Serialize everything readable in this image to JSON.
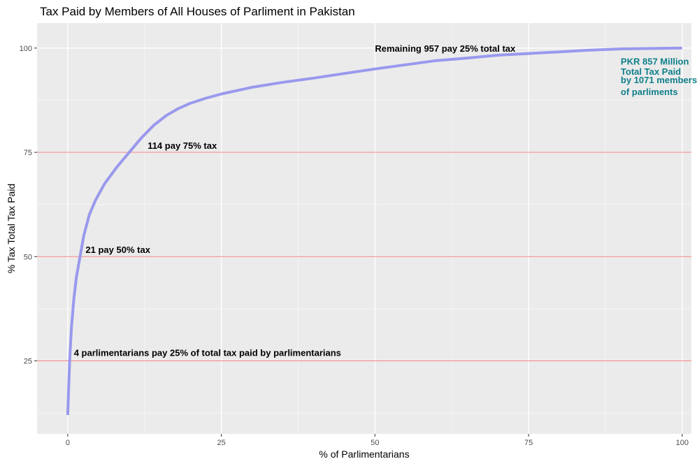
{
  "chart_data": {
    "type": "line",
    "title": "Tax Paid by Members of All Houses of Parliment in Pakistan",
    "xlabel": "% of Parlimentarians",
    "ylabel": "% Tax Total Tax Paid",
    "xlim": [
      -5,
      101.5
    ],
    "ylim": [
      7.5,
      106
    ],
    "x_ticks": [
      0,
      25,
      50,
      75,
      100
    ],
    "x_tick_labels": [
      "0",
      "25",
      "50",
      "75",
      "100"
    ],
    "y_ticks": [
      25,
      50,
      75,
      100
    ],
    "y_tick_labels": [
      "25",
      "50",
      "75",
      "100"
    ],
    "grid": true,
    "series": [
      {
        "color": "#9999ee",
        "x": [
          0,
          0.3,
          0.6,
          1,
          1.4,
          2,
          2.6,
          3.5,
          4.5,
          6,
          8,
          10,
          12,
          14,
          16,
          18,
          20,
          22.5,
          25,
          30,
          35,
          40,
          45,
          50,
          55,
          60,
          65,
          70,
          75,
          80,
          85,
          90,
          95,
          100
        ],
        "y": [
          12,
          25,
          33,
          40,
          45,
          50,
          55,
          60,
          63.5,
          67.5,
          71.5,
          75,
          78.5,
          81.5,
          83.8,
          85.5,
          86.8,
          88,
          89,
          90.6,
          91.8,
          92.8,
          93.9,
          95,
          96,
          97,
          97.6,
          98.3,
          98.7,
          99.1,
          99.5,
          99.8,
          99.9,
          100
        ]
      }
    ],
    "reference_lines": [
      {
        "y": 25,
        "color": "#f08080"
      },
      {
        "y": 50,
        "color": "#f08080"
      },
      {
        "y": 75,
        "color": "#f08080"
      }
    ],
    "annotations": [
      {
        "text": "4 parlimentarians pay 25% of total tax paid by parlimentarians",
        "x": 1,
        "y": 27,
        "anchor": "start",
        "color": "#000000"
      },
      {
        "text": "21 pay 50% tax",
        "x": 2.9,
        "y": 51.7,
        "anchor": "start",
        "color": "#000000"
      },
      {
        "text": "114 pay 75% tax",
        "x": 13,
        "y": 76.7,
        "anchor": "start",
        "color": "#000000"
      },
      {
        "text": "Remaining 957 pay 25% total tax",
        "x": 50,
        "y": 100,
        "anchor": "start",
        "color": "#000000"
      },
      {
        "text": "PKR 857 Million",
        "x": 90,
        "y": 96.9,
        "anchor": "start",
        "color": "#0f7f8a"
      },
      {
        "text": "Total Tax Paid",
        "x": 90,
        "y": 94.4,
        "anchor": "start",
        "color": "#0f7f8a"
      },
      {
        "text": "by 1071 members",
        "x": 90,
        "y": 92.4,
        "anchor": "start",
        "color": "#0f7f8a"
      },
      {
        "text": "of parliments",
        "x": 90,
        "y": 89.6,
        "anchor": "start",
        "color": "#0f7f8a"
      }
    ]
  }
}
